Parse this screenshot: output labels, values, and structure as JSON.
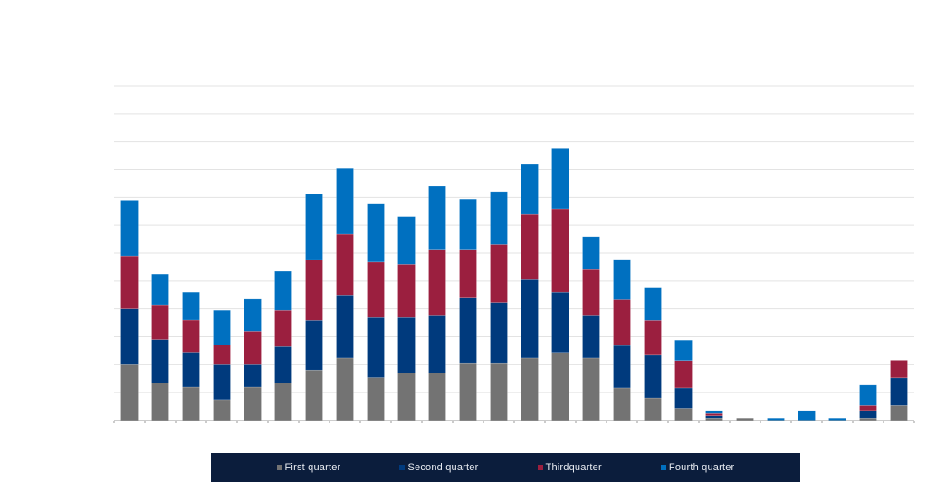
{
  "chart_data": {
    "type": "bar",
    "stacked": true,
    "title": "",
    "xlabel": "",
    "ylabel": "",
    "ylim": [
      0,
      12
    ],
    "gridlines": true,
    "legend_position": "bottom",
    "series": [
      {
        "name": "First quarter",
        "color": "#737373",
        "values": [
          2.0,
          1.35,
          1.2,
          0.75,
          1.2,
          1.35,
          1.81,
          2.24,
          1.54,
          1.7,
          1.7,
          2.07,
          2.07,
          2.24,
          2.44,
          2.24,
          1.17,
          0.81,
          0.44,
          0.09,
          0.09,
          0,
          0,
          0,
          0.09,
          0.54
        ]
      },
      {
        "name": "Second quarter",
        "color": "#003a7d",
        "values": [
          2.0,
          1.55,
          1.25,
          1.25,
          0.8,
          1.3,
          1.78,
          2.26,
          2.15,
          1.99,
          2.08,
          2.35,
          2.16,
          2.81,
          2.16,
          1.54,
          1.52,
          1.53,
          0.73,
          0.08,
          0,
          0,
          0,
          0,
          0.27,
          0.99
        ]
      },
      {
        "name": "Thirdquarter",
        "color": "#9b1f3f",
        "values": [
          1.9,
          1.25,
          1.15,
          0.7,
          1.2,
          1.3,
          2.18,
          2.18,
          1.99,
          1.91,
          2.36,
          1.72,
          2.08,
          2.34,
          2.99,
          1.63,
          1.64,
          1.25,
          0.98,
          0.08,
          0,
          0,
          0,
          0,
          0.18,
          0.63
        ]
      },
      {
        "name": "Fourth quarter",
        "color": "#0070c0",
        "values": [
          2.0,
          1.1,
          1.0,
          1.25,
          1.15,
          1.4,
          2.36,
          2.36,
          2.08,
          1.71,
          2.26,
          1.8,
          1.9,
          1.82,
          2.16,
          1.18,
          1.45,
          1.19,
          0.73,
          0.11,
          0,
          0.09,
          0.36,
          0.09,
          0.73,
          0
        ]
      }
    ]
  }
}
